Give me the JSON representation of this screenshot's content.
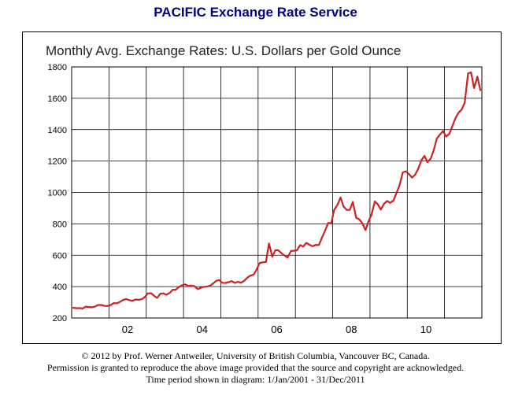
{
  "header": {
    "title": "PACIFIC Exchange Rate Service",
    "title_color": "#000080"
  },
  "footer": {
    "copyright": "© 2012 by Prof. Werner Antweiler, University of British Columbia, Vancouver BC, Canada.",
    "permission": "Permission is granted to reproduce the above image provided that the source and copyright are acknowledged.",
    "period": "Time period shown in diagram: 1/Jan/2001 - 31/Dec/2011"
  },
  "chart_data": {
    "type": "line",
    "title": "Monthly Avg. Exchange Rates: U.S. Dollars per Gold Ounce",
    "xlabel": "",
    "ylabel": "",
    "ylim": [
      200,
      1800
    ],
    "yticks": [
      200,
      400,
      600,
      800,
      1000,
      1200,
      1400,
      1600,
      1800
    ],
    "xlim": [
      2001.0,
      2012.0
    ],
    "xticks": [
      {
        "value": 2002.0,
        "label": "02"
      },
      {
        "value": 2004.0,
        "label": "04"
      },
      {
        "value": 2006.0,
        "label": "06"
      },
      {
        "value": 2008.0,
        "label": "08"
      },
      {
        "value": 2010.0,
        "label": "10"
      }
    ],
    "vgrid": [
      2002.0,
      2003.0,
      2004.0,
      2005.0,
      2006.0,
      2007.0,
      2008.0,
      2009.0,
      2010.0,
      2011.0
    ],
    "grid": true,
    "line_color": "#cc2222",
    "series": [
      {
        "x": [
          2001.04,
          2001.13,
          2001.21,
          2001.29,
          2001.38,
          2001.46,
          2001.54,
          2001.63,
          2001.71,
          2001.79,
          2001.88,
          2001.96,
          2002.04,
          2002.13,
          2002.21,
          2002.29,
          2002.38,
          2002.46,
          2002.54,
          2002.63,
          2002.71,
          2002.79,
          2002.88,
          2002.96,
          2003.04,
          2003.13,
          2003.21,
          2003.29,
          2003.38,
          2003.46,
          2003.54,
          2003.63,
          2003.71,
          2003.79,
          2003.88,
          2003.96,
          2004.04,
          2004.13,
          2004.21,
          2004.29,
          2004.38,
          2004.46,
          2004.54,
          2004.63,
          2004.71,
          2004.79,
          2004.88,
          2004.96,
          2005.04,
          2005.13,
          2005.21,
          2005.29,
          2005.38,
          2005.46,
          2005.54,
          2005.63,
          2005.71,
          2005.79,
          2005.88,
          2005.96,
          2006.04,
          2006.13,
          2006.21,
          2006.29,
          2006.38,
          2006.46,
          2006.54,
          2006.63,
          2006.71,
          2006.79,
          2006.88,
          2006.96,
          2007.04,
          2007.13,
          2007.21,
          2007.29,
          2007.38,
          2007.46,
          2007.54,
          2007.63,
          2007.71,
          2007.79,
          2007.88,
          2007.96,
          2008.04,
          2008.13,
          2008.21,
          2008.29,
          2008.38,
          2008.46,
          2008.54,
          2008.63,
          2008.71,
          2008.79,
          2008.88,
          2008.96,
          2009.04,
          2009.13,
          2009.21,
          2009.29,
          2009.38,
          2009.46,
          2009.54,
          2009.63,
          2009.71,
          2009.79,
          2009.88,
          2009.96,
          2010.04,
          2010.13,
          2010.21,
          2010.29,
          2010.38,
          2010.46,
          2010.54,
          2010.63,
          2010.71,
          2010.79,
          2010.88,
          2010.96,
          2011.04,
          2011.13,
          2011.21,
          2011.29,
          2011.38,
          2011.46,
          2011.54,
          2011.63,
          2011.71,
          2011.79,
          2011.88,
          2011.96
        ],
        "y": [
          265,
          262,
          263,
          260,
          272,
          270,
          268,
          273,
          283,
          283,
          277,
          276,
          282,
          295,
          294,
          302,
          315,
          321,
          314,
          310,
          318,
          316,
          320,
          333,
          356,
          358,
          341,
          328,
          355,
          357,
          348,
          360,
          380,
          380,
          398,
          408,
          414,
          404,
          406,
          403,
          384,
          392,
          398,
          400,
          406,
          419,
          437,
          442,
          424,
          423,
          428,
          435,
          423,
          431,
          424,
          437,
          457,
          470,
          476,
          509,
          550,
          555,
          557,
          675,
          590,
          632,
          632,
          612,
          598,
          585,
          627,
          629,
          631,
          665,
          655,
          679,
          666,
          657,
          666,
          665,
          710,
          754,
          806,
          803,
          889,
          922,
          968,
          910,
          888,
          889,
          940,
          838,
          829,
          806,
          760,
          816,
          858,
          943,
          924,
          891,
          929,
          946,
          934,
          948,
          996,
          1043,
          1128,
          1135,
          1118,
          1095,
          1113,
          1149,
          1206,
          1233,
          1193,
          1216,
          1270,
          1343,
          1370,
          1391,
          1356,
          1374,
          1424,
          1473,
          1510,
          1528,
          1572,
          1759,
          1765,
          1665,
          1738,
          1652
        ]
      }
    ]
  }
}
